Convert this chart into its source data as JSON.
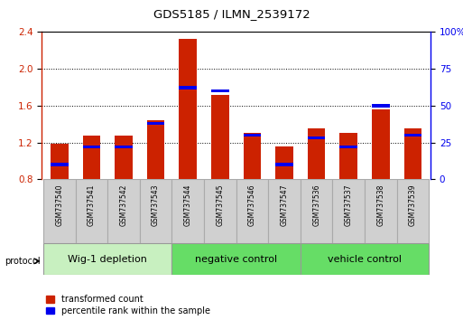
{
  "title": "GDS5185 / ILMN_2539172",
  "samples": [
    "GSM737540",
    "GSM737541",
    "GSM737542",
    "GSM737543",
    "GSM737544",
    "GSM737545",
    "GSM737546",
    "GSM737547",
    "GSM737536",
    "GSM737537",
    "GSM737538",
    "GSM737539"
  ],
  "red_values": [
    1.19,
    1.27,
    1.27,
    1.44,
    2.33,
    1.72,
    1.3,
    1.16,
    1.35,
    1.3,
    1.56,
    1.35
  ],
  "blue_values": [
    10,
    22,
    22,
    38,
    62,
    60,
    30,
    10,
    28,
    22,
    50,
    30
  ],
  "ylim_left": [
    0.8,
    2.4
  ],
  "ylim_right": [
    0,
    100
  ],
  "yticks_left": [
    0.8,
    1.2,
    1.6,
    2.0,
    2.4
  ],
  "yticks_right": [
    0,
    25,
    50,
    75,
    100
  ],
  "ytick_labels_right": [
    "0",
    "25",
    "50",
    "75",
    "100%"
  ],
  "groups": [
    {
      "label": "Wig-1 depletion",
      "start": 0,
      "end": 3
    },
    {
      "label": "negative control",
      "start": 4,
      "end": 7
    },
    {
      "label": "vehicle control",
      "start": 8,
      "end": 11
    }
  ],
  "bar_color_red": "#cc2200",
  "bar_color_blue": "#0000ee",
  "bar_width": 0.55,
  "protocol_label": "protocol",
  "legend_red": "transformed count",
  "legend_blue": "percentile rank within the sample",
  "group_colors": [
    "#c8f0c0",
    "#66dd66",
    "#66dd66"
  ],
  "sample_box_color": "#d0d0d0",
  "sample_box_edge": "#aaaaaa"
}
